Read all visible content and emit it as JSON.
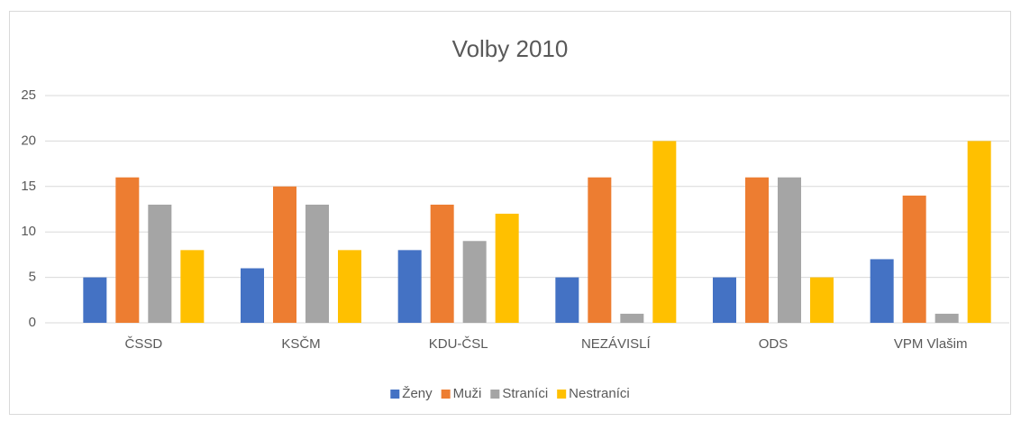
{
  "chart_data": {
    "type": "bar",
    "title": "Volby 2010",
    "categories": [
      "ČSSD",
      "KSČM",
      "KDU-ČSL",
      "NEZÁVISLÍ",
      "ODS",
      "VPM Vlašim"
    ],
    "series": [
      {
        "name": "Ženy",
        "color": "#4472c4",
        "values": [
          5,
          6,
          8,
          5,
          5,
          7
        ]
      },
      {
        "name": "Muži",
        "color": "#ed7d31",
        "values": [
          16,
          15,
          13,
          16,
          16,
          14
        ]
      },
      {
        "name": "Straníci",
        "color": "#a5a5a5",
        "values": [
          13,
          13,
          9,
          1,
          16,
          1
        ]
      },
      {
        "name": "Nestraníci",
        "color": "#ffc000",
        "values": [
          8,
          8,
          12,
          20,
          5,
          20
        ]
      }
    ],
    "ylim": [
      0,
      25
    ],
    "yticks": [
      0,
      5,
      10,
      15,
      20,
      25
    ],
    "grid": true,
    "legend": "bottom"
  }
}
